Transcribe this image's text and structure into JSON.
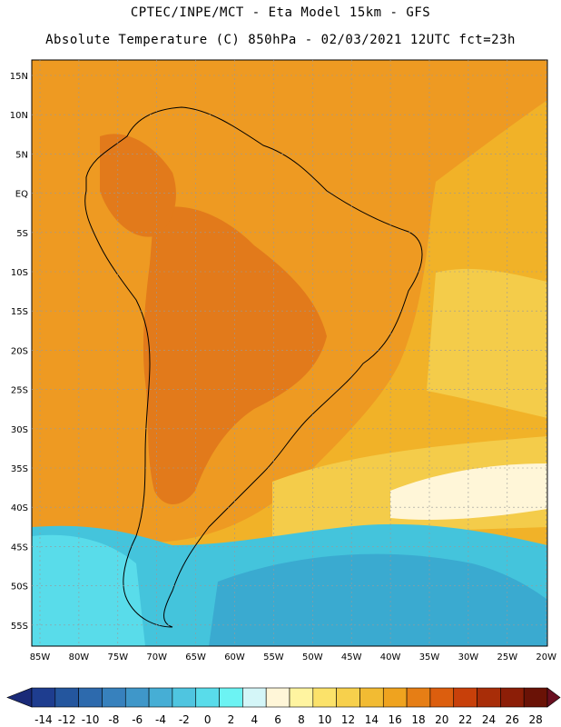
{
  "header": {
    "line1": "CPTEC/INPE/MCT -  Eta Model 15km - GFS",
    "line2": "Absolute Temperature (C) 850hPa - 02/03/2021 12UTC fct=23h"
  },
  "map": {
    "lat_labels": [
      "15N",
      "10N",
      "5N",
      "EQ",
      "5S",
      "10S",
      "15S",
      "20S",
      "25S",
      "30S",
      "35S",
      "40S",
      "45S",
      "50S",
      "55S"
    ],
    "lon_labels": [
      "85W",
      "80W",
      "75W",
      "70W",
      "65W",
      "60W",
      "55W",
      "50W",
      "45W",
      "40W",
      "35W",
      "30W",
      "25W",
      "20W"
    ],
    "colors": {
      "hot": "#e27a1b",
      "warm": "#ee9a22",
      "mild": "#f1b228",
      "cool": "#f4cc4a",
      "cold": "#44c4dc",
      "colder": "#3aaad0"
    }
  },
  "colorbar": {
    "labels": [
      "-14",
      "-12",
      "-10",
      "-8",
      "-6",
      "-4",
      "-2",
      "0",
      "2",
      "4",
      "6",
      "8",
      "10",
      "12",
      "14",
      "16",
      "18",
      "20",
      "22",
      "24",
      "26",
      "28"
    ],
    "colors": [
      "#1e3d8f",
      "#24569e",
      "#2d6aad",
      "#3781bd",
      "#3f97c9",
      "#46aed5",
      "#4fc5e0",
      "#59dcea",
      "#6cf3f3",
      "#d4f6f8",
      "#fff6d8",
      "#fff4a0",
      "#fbe26a",
      "#f7d04c",
      "#f2bb33",
      "#efa31f",
      "#e67e15",
      "#dc5e0e",
      "#c8400a",
      "#a82d08",
      "#8c1e07",
      "#6a1206"
    ],
    "left_arrow_color": "#1a2a78",
    "right_arrow_color": "#6a0f20"
  }
}
